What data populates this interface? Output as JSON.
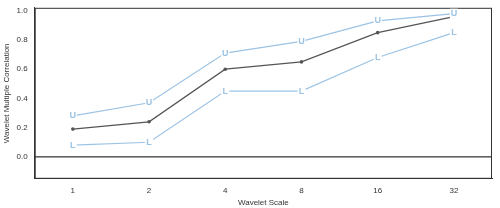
{
  "chart_data": {
    "type": "line",
    "x_label": "Wavelet Scale",
    "y_label": "Wavelet Multiple Correlation",
    "categories": [
      "1",
      "2",
      "4",
      "8",
      "16",
      "32"
    ],
    "series": [
      {
        "marker": "U",
        "color": "#9cc3e4",
        "values": [
          0.28,
          0.37,
          0.71,
          0.79,
          0.93,
          0.98
        ]
      },
      {
        "marker": "point",
        "color": "#555555",
        "values": [
          0.19,
          0.24,
          0.6,
          0.65,
          0.85,
          0.96
        ]
      },
      {
        "marker": "L",
        "color": "#9cc3e4",
        "values": [
          0.08,
          0.1,
          0.45,
          0.45,
          0.68,
          0.85
        ]
      }
    ],
    "hline": 0,
    "ylim": [
      -0.15,
      1.02
    ],
    "yticks": [
      {
        "value": 0,
        "label": "0.0"
      },
      {
        "value": 0.2,
        "label": "0.2"
      },
      {
        "value": 0.4,
        "label": "0.4"
      },
      {
        "value": 0.6,
        "label": "0.6"
      },
      {
        "value": 0.8,
        "label": "0.8"
      },
      {
        "value": 1,
        "label": "1.0"
      }
    ],
    "grid": false,
    "tick_labels": true
  }
}
